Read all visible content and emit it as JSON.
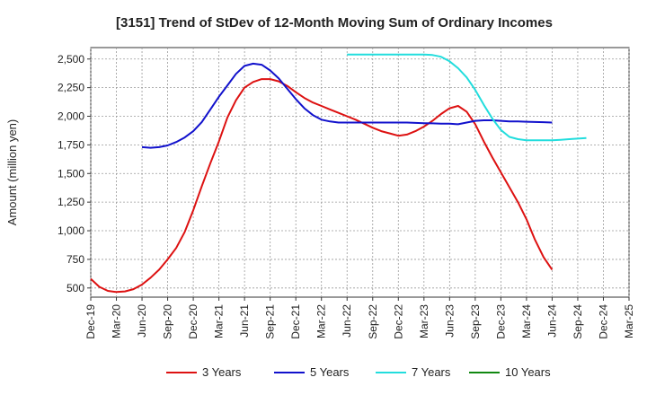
{
  "chart_data": {
    "type": "line",
    "title": "[3151]  Trend of StDev of 12-Month Moving Sum of Ordinary Incomes",
    "xlabel": "",
    "ylabel": "Amount (million yen)",
    "ylim": [
      420,
      2600
    ],
    "yticks": [
      500,
      750,
      1000,
      1250,
      1500,
      1750,
      2000,
      2250,
      2500
    ],
    "ytick_labels": [
      "500",
      "750",
      "1,000",
      "1,250",
      "1,500",
      "1,750",
      "2,000",
      "2,250",
      "2,500"
    ],
    "x_categories": [
      "Dec-19",
      "Mar-20",
      "Jun-20",
      "Sep-20",
      "Dec-20",
      "Mar-21",
      "Jun-21",
      "Sep-21",
      "Dec-21",
      "Mar-22",
      "Jun-22",
      "Sep-22",
      "Dec-22",
      "Mar-23",
      "Jun-23",
      "Sep-23",
      "Dec-23",
      "Mar-24",
      "Jun-24",
      "Sep-24",
      "Dec-24",
      "Mar-25"
    ],
    "grid": true,
    "legend_position": "bottom",
    "series": [
      {
        "name": "3 Years",
        "color": "#dd1111",
        "start_index": 0,
        "values": [
          580,
          510,
          475,
          465,
          470,
          490,
          530,
          590,
          660,
          750,
          850,
          990,
          1180,
          1390,
          1590,
          1780,
          1990,
          2140,
          2250,
          2300,
          2325,
          2325,
          2305,
          2265,
          2210,
          2160,
          2120,
          2090,
          2060,
          2030,
          2000,
          1970,
          1935,
          1900,
          1870,
          1850,
          1830,
          1840,
          1870,
          1910,
          1960,
          2020,
          2070,
          2090,
          2040,
          1930,
          1780,
          1640,
          1510,
          1380,
          1250,
          1100,
          920,
          770,
          660
        ]
      },
      {
        "name": "5 Years",
        "color": "#1111cc",
        "start_index": 6,
        "values": [
          1730,
          1725,
          1730,
          1745,
          1775,
          1815,
          1870,
          1950,
          2060,
          2170,
          2270,
          2370,
          2440,
          2460,
          2450,
          2400,
          2330,
          2240,
          2150,
          2070,
          2010,
          1970,
          1955,
          1945,
          1945,
          1945,
          1945,
          1945,
          1945,
          1945,
          1945,
          1945,
          1942,
          1940,
          1938,
          1935,
          1935,
          1930,
          1945,
          1960,
          1965,
          1965,
          1960,
          1955,
          1955,
          1952,
          1950,
          1948,
          1945
        ]
      },
      {
        "name": "7 Years",
        "color": "#22dddd",
        "start_index": 30,
        "values": [
          2540,
          2540,
          2540,
          2540,
          2540,
          2540,
          2540,
          2540,
          2540,
          2540,
          2535,
          2520,
          2480,
          2420,
          2340,
          2230,
          2100,
          1980,
          1880,
          1820,
          1800,
          1790,
          1790,
          1790,
          1790,
          1795,
          1800,
          1805,
          1810
        ]
      },
      {
        "name": "10 Years",
        "color": "#118811",
        "start_index": 0,
        "values": []
      }
    ]
  }
}
